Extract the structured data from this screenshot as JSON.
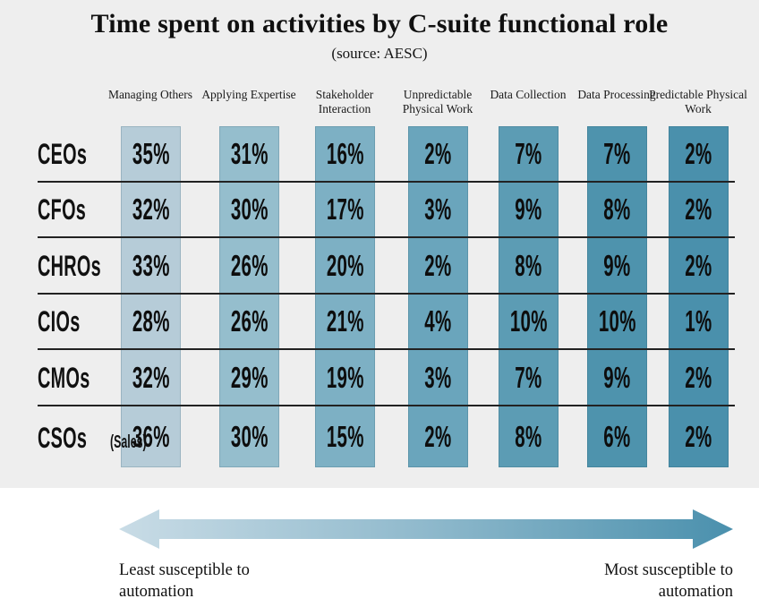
{
  "title": "Time spent on activities by C-suite functional role",
  "subtitle": "(source: AESC)",
  "table": {
    "columns": [
      {
        "label": "Managing Others",
        "color": "#b6ccd8"
      },
      {
        "label": "Applying Expertise",
        "color": "#95becd"
      },
      {
        "label": "Stakeholder Interaction",
        "color": "#7db0c4"
      },
      {
        "label": "Unpredictable Physical Work",
        "color": "#6aa5bc"
      },
      {
        "label": "Data Collection",
        "color": "#5c9cb4"
      },
      {
        "label": "Data Processing",
        "color": "#4e93ad"
      },
      {
        "label": "Predictable Physical Work",
        "color": "#4a90ac"
      }
    ],
    "rows": [
      {
        "label": "CEOs",
        "cells": [
          "35%",
          "31%",
          "16%",
          "2%",
          "7%",
          "7%",
          "2%"
        ]
      },
      {
        "label": "CFOs",
        "cells": [
          "32%",
          "30%",
          "17%",
          "3%",
          "9%",
          "8%",
          "2%"
        ]
      },
      {
        "label": "CHROs",
        "cells": [
          "33%",
          "26%",
          "20%",
          "2%",
          "8%",
          "9%",
          "2%"
        ]
      },
      {
        "label": "CIOs",
        "cells": [
          "28%",
          "26%",
          "21%",
          "4%",
          "10%",
          "10%",
          "1%"
        ]
      },
      {
        "label": "CMOs",
        "cells": [
          "32%",
          "29%",
          "19%",
          "3%",
          "7%",
          "9%",
          "2%"
        ]
      },
      {
        "label": "CSOs",
        "note": "(Sales)",
        "cells": [
          "36%",
          "30%",
          "15%",
          "2%",
          "8%",
          "6%",
          "2%"
        ]
      }
    ]
  },
  "legend": {
    "left_label": "Least susceptible to automation",
    "right_label": "Most susceptible to automation",
    "gradient_start": "#c9dce6",
    "gradient_mid": "#8fb9cc",
    "gradient_end": "#4a90ad"
  },
  "background_color": "#eeeeee",
  "divider_color": "#222222",
  "chart_data": {
    "type": "table",
    "title": "Time spent on activities by C-suite functional role",
    "subtitle": "(source: AESC)",
    "columns": [
      "Managing Others",
      "Applying Expertise",
      "Stakeholder Interaction",
      "Unpredictable Physical Work",
      "Data Collection",
      "Data Processing",
      "Predictable Physical Work"
    ],
    "rows": [
      "CEOs",
      "CFOs",
      "CHROs",
      "CIOs",
      "CMOs",
      "CSOs (Sales)"
    ],
    "values_pct": [
      [
        35,
        31,
        16,
        2,
        7,
        7,
        2
      ],
      [
        32,
        30,
        17,
        3,
        9,
        8,
        2
      ],
      [
        33,
        26,
        20,
        2,
        8,
        9,
        2
      ],
      [
        28,
        26,
        21,
        4,
        10,
        10,
        1
      ],
      [
        32,
        29,
        19,
        3,
        7,
        9,
        2
      ],
      [
        36,
        30,
        15,
        2,
        8,
        6,
        2
      ]
    ],
    "column_colors": [
      "#b6ccd8",
      "#95becd",
      "#7db0c4",
      "#6aa5bc",
      "#5c9cb4",
      "#4e93ad",
      "#4a90ac"
    ],
    "axis_note": "Columns ordered left to right from least susceptible to most susceptible to automation",
    "legend": [
      "Least susceptible to automation",
      "Most susceptible to automation"
    ]
  }
}
